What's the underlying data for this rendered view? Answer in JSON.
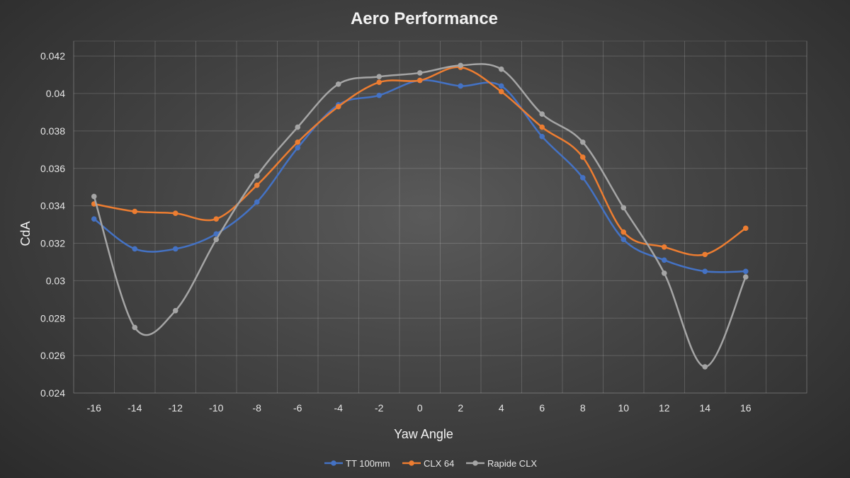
{
  "chart_data": {
    "type": "line",
    "title": "Aero Performance",
    "xlabel": "Yaw Angle",
    "ylabel": "CdA",
    "x": [
      -16,
      -14,
      -12,
      -10,
      -8,
      -6,
      -4,
      -2,
      0,
      2,
      4,
      6,
      8,
      10,
      12,
      14,
      16
    ],
    "x_tick_labels": [
      "-16",
      "-14",
      "-12",
      "-10",
      "-8",
      "-6",
      "-4",
      "-2",
      "0",
      "2",
      "4",
      "6",
      "8",
      "10",
      "12",
      "14",
      "16"
    ],
    "xlim": [
      -17,
      19
    ],
    "ylim": [
      0.024,
      0.0428
    ],
    "y_ticks": [
      0.024,
      0.026,
      0.028,
      0.03,
      0.032,
      0.034,
      0.036,
      0.038,
      0.04,
      0.042
    ],
    "y_tick_labels": [
      "0.024",
      "0.026",
      "0.028",
      "0.03",
      "0.032",
      "0.034",
      "0.036",
      "0.038",
      "0.04",
      "0.042"
    ],
    "grid": true,
    "legend_position": "bottom",
    "series": [
      {
        "name": "TT 100mm",
        "color": "#4472c4",
        "values": [
          0.0333,
          0.0317,
          0.0317,
          0.0325,
          0.0342,
          0.0371,
          0.0394,
          0.0399,
          0.0407,
          0.0404,
          0.0404,
          0.0377,
          0.0355,
          0.0322,
          0.0311,
          0.0305,
          0.0305
        ]
      },
      {
        "name": "CLX 64",
        "color": "#ed7d31",
        "values": [
          0.0341,
          0.0337,
          0.0336,
          0.0333,
          0.0351,
          0.0374,
          0.0393,
          0.0406,
          0.0407,
          0.0414,
          0.0401,
          0.0382,
          0.0366,
          0.0326,
          0.0318,
          0.0314,
          0.0328
        ]
      },
      {
        "name": "Rapide CLX",
        "color": "#a5a5a5",
        "values": [
          0.0345,
          0.0275,
          0.0284,
          0.0322,
          0.0356,
          0.0382,
          0.0405,
          0.0409,
          0.0411,
          0.0415,
          0.0413,
          0.0389,
          0.0374,
          0.0339,
          0.0304,
          0.0254,
          0.0302
        ]
      }
    ]
  }
}
